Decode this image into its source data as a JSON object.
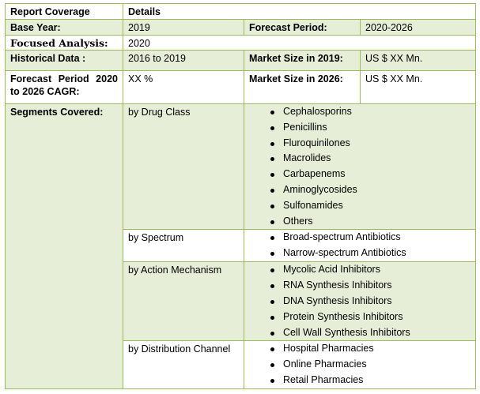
{
  "header": {
    "coverage": "Report Coverage",
    "details": "Details"
  },
  "rows": {
    "base_year": {
      "label": "Base Year:",
      "value": "2019",
      "label2": "Forecast Period:",
      "value2": "2020-2026"
    },
    "focused": {
      "label": "Focused Analysis:",
      "value": "2020"
    },
    "historical": {
      "label": "Historical Data :",
      "value": "2016 to 2019",
      "label2": "Market Size in 2019:",
      "value2": "US $ XX Mn."
    },
    "cagr": {
      "label": "Forecast Period 2020 to 2026 CAGR:",
      "value": "XX %",
      "label2": "Market Size in 2026:",
      "value2": "US $ XX Mn."
    }
  },
  "segments": {
    "label": "Segments Covered:",
    "groups": [
      {
        "name": "by Drug Class",
        "items": [
          "Cephalosporins",
          "Penicillins",
          "Fluroquinilones",
          "Macrolides",
          "Carbapenems",
          "Aminoglycosides",
          "Sulfonamides",
          "Others"
        ]
      },
      {
        "name": "by Spectrum",
        "items": [
          "Broad-spectrum Antibiotics",
          "Narrow-spectrum Antibiotics"
        ]
      },
      {
        "name": "by Action Mechanism",
        "items": [
          "Mycolic Acid Inhibitors",
          "RNA Synthesis Inhibitors",
          "DNA Synthesis Inhibitors",
          "Protein Synthesis Inhibitors",
          "Cell Wall Synthesis Inhibitors"
        ]
      },
      {
        "name": "by Distribution Channel",
        "items": [
          "Hospital Pharmacies",
          "Online Pharmacies",
          "Retail Pharmacies"
        ]
      }
    ]
  },
  "colors": {
    "border": "#9bbb59",
    "shade": "#e6eed8"
  }
}
